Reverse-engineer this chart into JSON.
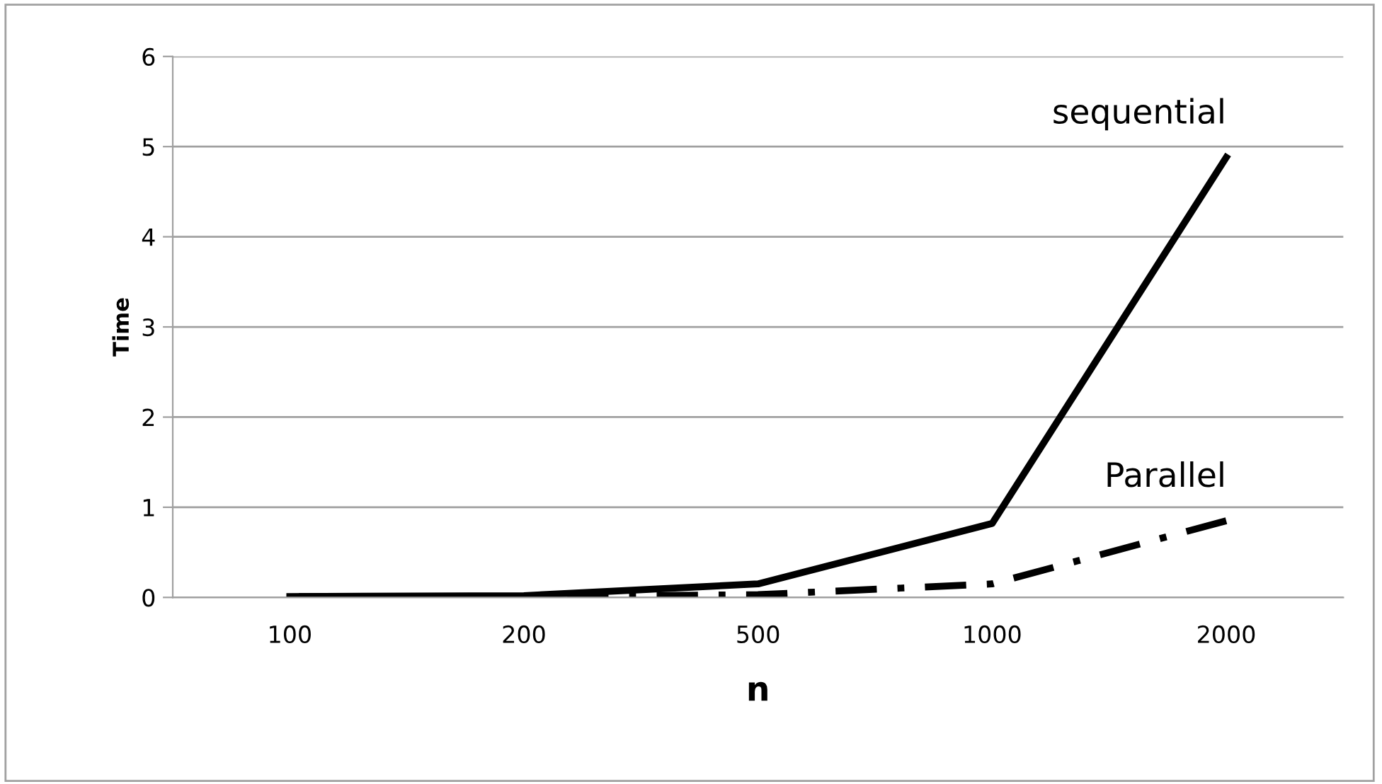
{
  "chart_data": {
    "type": "line",
    "xlabel": "n",
    "ylabel": "Time",
    "categories": [
      "100",
      "200",
      "500",
      "1000",
      "2000"
    ],
    "series": [
      {
        "name": "sequential",
        "color": "#000000",
        "line_style": "solid",
        "values": [
          0.01,
          0.02,
          0.15,
          0.82,
          4.88
        ]
      },
      {
        "name": "Parallel",
        "color": "#000000",
        "line_style": "dashdot",
        "values": [
          0.01,
          0.01,
          0.03,
          0.15,
          0.85
        ]
      }
    ],
    "ylim": [
      0,
      6
    ],
    "yticks": [
      0,
      1,
      2,
      3,
      4,
      5,
      6
    ],
    "grid": "y",
    "legend": false,
    "marker": "none"
  }
}
